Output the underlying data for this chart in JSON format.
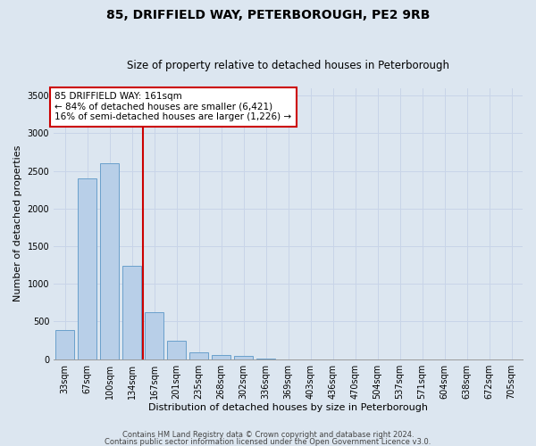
{
  "title": "85, DRIFFIELD WAY, PETERBOROUGH, PE2 9RB",
  "subtitle": "Size of property relative to detached houses in Peterborough",
  "xlabel": "Distribution of detached houses by size in Peterborough",
  "ylabel": "Number of detached properties",
  "footer1": "Contains HM Land Registry data © Crown copyright and database right 2024.",
  "footer2": "Contains public sector information licensed under the Open Government Licence v3.0.",
  "categories": [
    "33sqm",
    "67sqm",
    "100sqm",
    "134sqm",
    "167sqm",
    "201sqm",
    "235sqm",
    "268sqm",
    "302sqm",
    "336sqm",
    "369sqm",
    "403sqm",
    "436sqm",
    "470sqm",
    "504sqm",
    "537sqm",
    "571sqm",
    "604sqm",
    "638sqm",
    "672sqm",
    "705sqm"
  ],
  "values": [
    390,
    2400,
    2600,
    1240,
    630,
    250,
    90,
    60,
    40,
    10,
    0,
    0,
    0,
    0,
    0,
    0,
    0,
    0,
    0,
    0,
    0
  ],
  "bar_color": "#b8cfe8",
  "bar_edge_color": "#6aa0cc",
  "red_line_color": "#cc0000",
  "red_line_x": 3.5,
  "annotation_text": "85 DRIFFIELD WAY: 161sqm\n← 84% of detached houses are smaller (6,421)\n16% of semi-detached houses are larger (1,226) →",
  "annotation_box_facecolor": "#ffffff",
  "annotation_box_edgecolor": "#cc0000",
  "ylim": [
    0,
    3600
  ],
  "yticks": [
    0,
    500,
    1000,
    1500,
    2000,
    2500,
    3000,
    3500
  ],
  "grid_color": "#c8d4e8",
  "bg_color": "#dce6f0",
  "title_fontsize": 10,
  "subtitle_fontsize": 8.5,
  "tick_fontsize": 7,
  "ylabel_fontsize": 8,
  "xlabel_fontsize": 8,
  "annotation_fontsize": 7.5,
  "footer_fontsize": 6
}
